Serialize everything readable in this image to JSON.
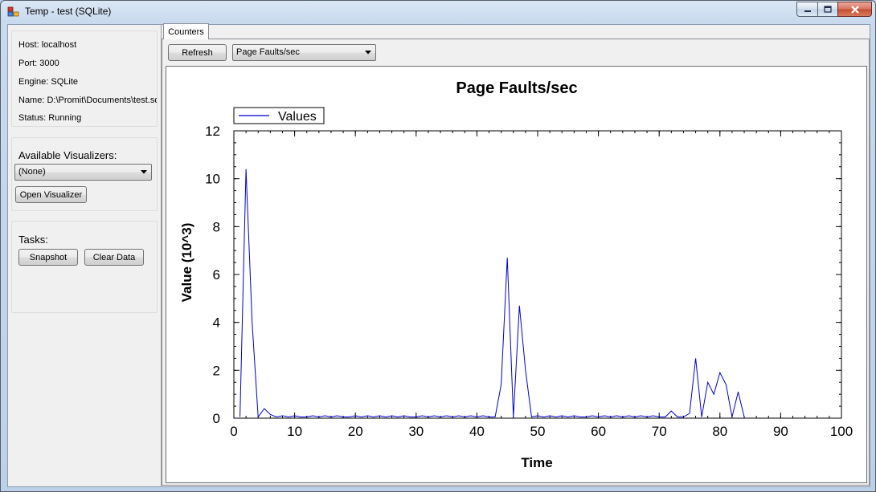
{
  "window": {
    "title": "Temp - test (SQLite)"
  },
  "info": {
    "host": "Host: localhost",
    "port": "Port: 3000",
    "engine": "Engine: SQLite",
    "name": "Name: D:\\Promit\\Documents\\test.sq",
    "status": "Status: Running"
  },
  "visualizers": {
    "label": "Available Visualizers:",
    "selected": "(None)",
    "open_label": "Open Visualizer"
  },
  "tasks": {
    "label": "Tasks:",
    "snapshot_label": "Snapshot",
    "clear_label": "Clear Data"
  },
  "tabs": [
    {
      "label": "Counters"
    }
  ],
  "toolbar": {
    "refresh_label": "Refresh",
    "counter_selected": "Page Faults/sec"
  },
  "icons": {
    "app": "app-icon",
    "minimize": "minimize-icon",
    "maximize": "maximize-icon",
    "close": "close-icon",
    "dropdown": "chevron-down-icon"
  },
  "colors": {
    "series": "#0000cc",
    "close_button": "#c44c30"
  },
  "chart_data": {
    "type": "line",
    "title": "Page Faults/sec",
    "xlabel": "Time",
    "ylabel": "Value (10^3)",
    "xlim": [
      0,
      100
    ],
    "ylim": [
      0,
      12
    ],
    "xticks": [
      0,
      10,
      20,
      30,
      40,
      50,
      60,
      70,
      80,
      90,
      100
    ],
    "yticks": [
      0,
      2,
      4,
      6,
      8,
      10,
      12
    ],
    "legend": "top-left",
    "series": [
      {
        "name": "Values",
        "x": [
          1,
          2,
          3,
          4,
          5,
          6,
          7,
          8,
          9,
          10,
          11,
          12,
          13,
          14,
          15,
          16,
          17,
          18,
          19,
          20,
          21,
          22,
          23,
          24,
          25,
          26,
          27,
          28,
          29,
          30,
          31,
          32,
          33,
          34,
          35,
          36,
          37,
          38,
          39,
          40,
          41,
          42,
          43,
          44,
          45,
          46,
          47,
          48,
          49,
          50,
          51,
          52,
          53,
          54,
          55,
          56,
          57,
          58,
          59,
          60,
          61,
          62,
          63,
          64,
          65,
          66,
          67,
          68,
          69,
          70,
          71,
          72,
          73,
          74,
          75,
          76,
          77,
          78,
          79,
          80,
          81,
          82,
          83,
          84
        ],
        "y": [
          0.05,
          10.4,
          4.0,
          0.05,
          0.4,
          0.15,
          0.05,
          0.1,
          0.05,
          0.1,
          0.05,
          0.05,
          0.1,
          0.05,
          0.1,
          0.05,
          0.1,
          0.05,
          0.05,
          0.1,
          0.05,
          0.1,
          0.05,
          0.1,
          0.05,
          0.1,
          0.05,
          0.1,
          0.05,
          0.05,
          0.1,
          0.05,
          0.1,
          0.05,
          0.1,
          0.05,
          0.1,
          0.05,
          0.1,
          0.05,
          0.1,
          0.05,
          0.05,
          1.4,
          6.7,
          0.05,
          4.7,
          2.0,
          0.05,
          0.1,
          0.05,
          0.1,
          0.05,
          0.1,
          0.05,
          0.1,
          0.05,
          0.05,
          0.1,
          0.05,
          0.1,
          0.05,
          0.1,
          0.05,
          0.1,
          0.05,
          0.1,
          0.05,
          0.1,
          0.05,
          0.05,
          0.3,
          0.05,
          0.05,
          0.2,
          2.5,
          0.05,
          1.5,
          1.0,
          1.9,
          1.4,
          0.05,
          1.1,
          0.05
        ]
      }
    ]
  }
}
